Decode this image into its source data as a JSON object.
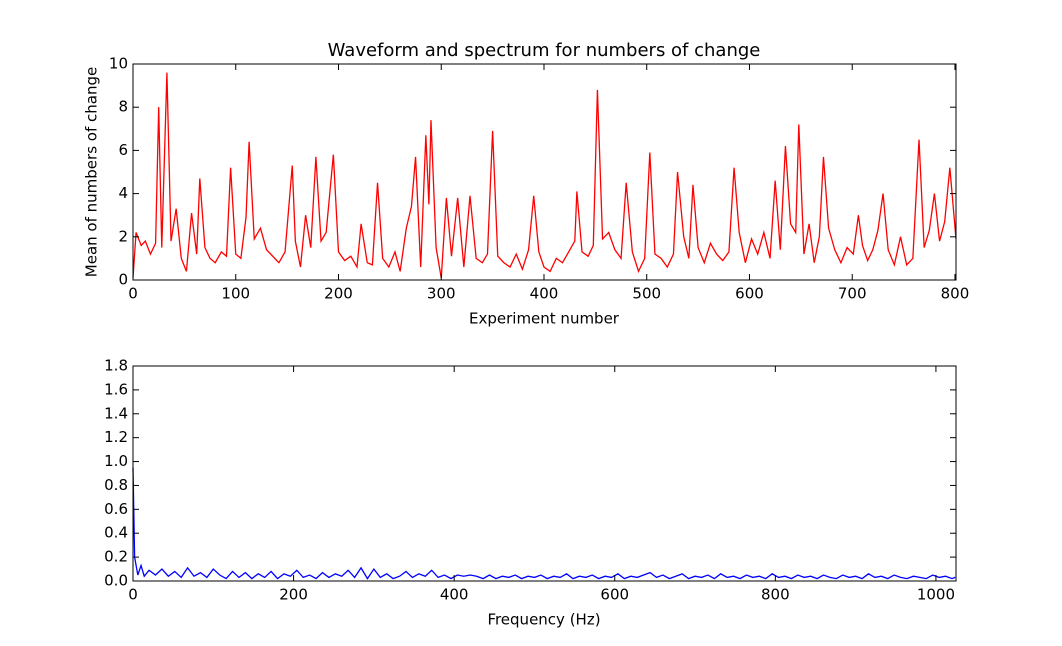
{
  "chart_data": [
    {
      "type": "line",
      "title": "Waveform and spectrum for numbers of change",
      "xlabel": "Experiment number",
      "ylabel": "Mean of numbers of change",
      "xlim": [
        0,
        801
      ],
      "ylim": [
        0,
        10
      ],
      "xticks": [
        0,
        100,
        200,
        300,
        400,
        500,
        600,
        700,
        800
      ],
      "yticks": [
        0,
        2,
        4,
        6,
        8,
        10
      ],
      "series": [
        {
          "color": "#ff0000",
          "x": [
            0,
            3,
            8,
            12,
            17,
            22,
            25,
            28,
            33,
            37,
            42,
            47,
            52,
            57,
            62,
            65,
            70,
            75,
            80,
            86,
            91,
            95,
            100,
            105,
            110,
            113,
            118,
            124,
            130,
            136,
            142,
            148,
            155,
            158,
            163,
            168,
            173,
            178,
            183,
            188,
            195,
            200,
            206,
            212,
            218,
            222,
            228,
            233,
            238,
            243,
            249,
            255,
            260,
            266,
            271,
            275,
            280,
            285,
            288,
            290,
            295,
            300,
            305,
            310,
            316,
            322,
            328,
            334,
            340,
            345,
            350,
            355,
            361,
            367,
            373,
            379,
            385,
            390,
            395,
            400,
            406,
            412,
            418,
            424,
            430,
            432,
            437,
            443,
            448,
            452,
            457,
            463,
            469,
            475,
            480,
            486,
            492,
            498,
            503,
            508,
            514,
            520,
            526,
            530,
            536,
            541,
            545,
            550,
            556,
            562,
            568,
            574,
            580,
            585,
            590,
            596,
            602,
            608,
            614,
            620,
            625,
            630,
            635,
            640,
            645,
            648,
            653,
            658,
            663,
            668,
            672,
            677,
            683,
            689,
            695,
            701,
            706,
            710,
            715,
            720,
            725,
            730,
            735,
            741,
            747,
            753,
            759,
            765,
            770,
            775,
            780,
            785,
            790,
            795,
            801
          ],
          "values": [
            0.1,
            2.2,
            1.6,
            1.8,
            1.2,
            1.7,
            8.0,
            1.5,
            9.6,
            1.8,
            3.3,
            1.0,
            0.4,
            3.1,
            1.2,
            4.7,
            1.5,
            1.0,
            0.8,
            1.3,
            1.1,
            5.2,
            1.2,
            1.0,
            2.9,
            6.4,
            1.9,
            2.4,
            1.4,
            1.1,
            0.8,
            1.3,
            5.3,
            1.8,
            0.6,
            3.0,
            1.5,
            5.7,
            1.8,
            2.2,
            5.8,
            1.3,
            0.9,
            1.1,
            0.6,
            2.6,
            0.8,
            0.7,
            4.5,
            1.0,
            0.6,
            1.3,
            0.4,
            2.4,
            3.4,
            5.7,
            0.6,
            6.7,
            3.5,
            7.4,
            1.5,
            0.1,
            3.8,
            1.1,
            3.8,
            0.6,
            3.9,
            1.0,
            0.8,
            1.2,
            6.9,
            1.1,
            0.8,
            0.6,
            1.2,
            0.5,
            1.4,
            3.9,
            1.3,
            0.6,
            0.4,
            1.0,
            0.8,
            1.3,
            1.8,
            4.1,
            1.3,
            1.1,
            1.6,
            8.8,
            1.9,
            2.2,
            1.4,
            1.0,
            4.5,
            1.3,
            0.4,
            1.0,
            5.9,
            1.2,
            1.0,
            0.6,
            1.2,
            5.0,
            2.0,
            1.0,
            4.4,
            1.5,
            0.8,
            1.7,
            1.2,
            0.9,
            1.3,
            5.2,
            2.2,
            0.8,
            1.9,
            1.2,
            2.2,
            1.0,
            4.6,
            1.4,
            6.2,
            2.6,
            2.2,
            7.2,
            1.2,
            2.6,
            0.8,
            2.0,
            5.7,
            2.4,
            1.4,
            0.8,
            1.5,
            1.2,
            3.0,
            1.6,
            0.9,
            1.4,
            2.3,
            4.0,
            1.4,
            0.7,
            2.0,
            0.7,
            1.0,
            6.5,
            1.5,
            2.3,
            4.0,
            1.8,
            2.7,
            5.2,
            1.9
          ]
        }
      ]
    },
    {
      "type": "line",
      "xlabel": "Frequency (Hz)",
      "xlim": [
        0,
        1025
      ],
      "ylim": [
        0,
        1.8
      ],
      "xticks": [
        0,
        200,
        400,
        600,
        800,
        1000
      ],
      "yticks": [
        {
          "value": 0,
          "label": "0.0"
        },
        {
          "value": 0.2,
          "label": "0.2"
        },
        {
          "value": 0.4,
          "label": "0.4"
        },
        {
          "value": 0.6,
          "label": "0.6"
        },
        {
          "value": 0.8,
          "label": "0.8"
        },
        {
          "value": 1,
          "label": "1.0"
        },
        1.2,
        1.4,
        1.6,
        1.8
      ],
      "series": [
        {
          "color": "#0000ff",
          "x": [
            0,
            2,
            6,
            10,
            14,
            20,
            28,
            36,
            44,
            52,
            60,
            68,
            76,
            84,
            92,
            100,
            108,
            116,
            124,
            132,
            140,
            148,
            156,
            164,
            172,
            180,
            188,
            196,
            204,
            212,
            220,
            228,
            236,
            244,
            252,
            260,
            268,
            276,
            284,
            292,
            300,
            308,
            316,
            324,
            332,
            340,
            348,
            356,
            364,
            372,
            380,
            388,
            396,
            404,
            412,
            420,
            428,
            436,
            444,
            452,
            460,
            468,
            476,
            484,
            492,
            500,
            508,
            516,
            524,
            532,
            540,
            548,
            556,
            564,
            572,
            580,
            588,
            596,
            604,
            612,
            620,
            628,
            636,
            644,
            652,
            660,
            668,
            676,
            684,
            692,
            700,
            708,
            716,
            724,
            732,
            740,
            748,
            756,
            764,
            772,
            780,
            788,
            796,
            804,
            812,
            820,
            828,
            836,
            844,
            852,
            860,
            868,
            876,
            884,
            892,
            900,
            908,
            916,
            924,
            932,
            940,
            948,
            956,
            964,
            972,
            980,
            988,
            996,
            1004,
            1012,
            1020,
            1024
          ],
          "values": [
            0.95,
            0.2,
            0.05,
            0.13,
            0.04,
            0.09,
            0.05,
            0.1,
            0.04,
            0.08,
            0.03,
            0.11,
            0.04,
            0.07,
            0.03,
            0.1,
            0.05,
            0.02,
            0.08,
            0.03,
            0.07,
            0.02,
            0.06,
            0.03,
            0.08,
            0.02,
            0.06,
            0.04,
            0.09,
            0.03,
            0.05,
            0.02,
            0.07,
            0.03,
            0.06,
            0.04,
            0.09,
            0.03,
            0.11,
            0.02,
            0.1,
            0.03,
            0.06,
            0.02,
            0.04,
            0.08,
            0.03,
            0.06,
            0.04,
            0.09,
            0.03,
            0.05,
            0.02,
            0.05,
            0.04,
            0.05,
            0.04,
            0.02,
            0.05,
            0.02,
            0.04,
            0.03,
            0.05,
            0.02,
            0.04,
            0.03,
            0.05,
            0.02,
            0.04,
            0.03,
            0.06,
            0.02,
            0.04,
            0.03,
            0.05,
            0.02,
            0.04,
            0.03,
            0.06,
            0.02,
            0.04,
            0.03,
            0.05,
            0.07,
            0.03,
            0.05,
            0.02,
            0.04,
            0.06,
            0.02,
            0.04,
            0.03,
            0.05,
            0.02,
            0.06,
            0.03,
            0.04,
            0.02,
            0.05,
            0.03,
            0.04,
            0.02,
            0.06,
            0.03,
            0.04,
            0.02,
            0.05,
            0.03,
            0.04,
            0.02,
            0.05,
            0.03,
            0.02,
            0.05,
            0.03,
            0.04,
            0.02,
            0.06,
            0.03,
            0.04,
            0.02,
            0.05,
            0.03,
            0.02,
            0.04,
            0.03,
            0.02,
            0.05,
            0.03,
            0.04,
            0.02,
            0.03
          ]
        }
      ]
    }
  ]
}
